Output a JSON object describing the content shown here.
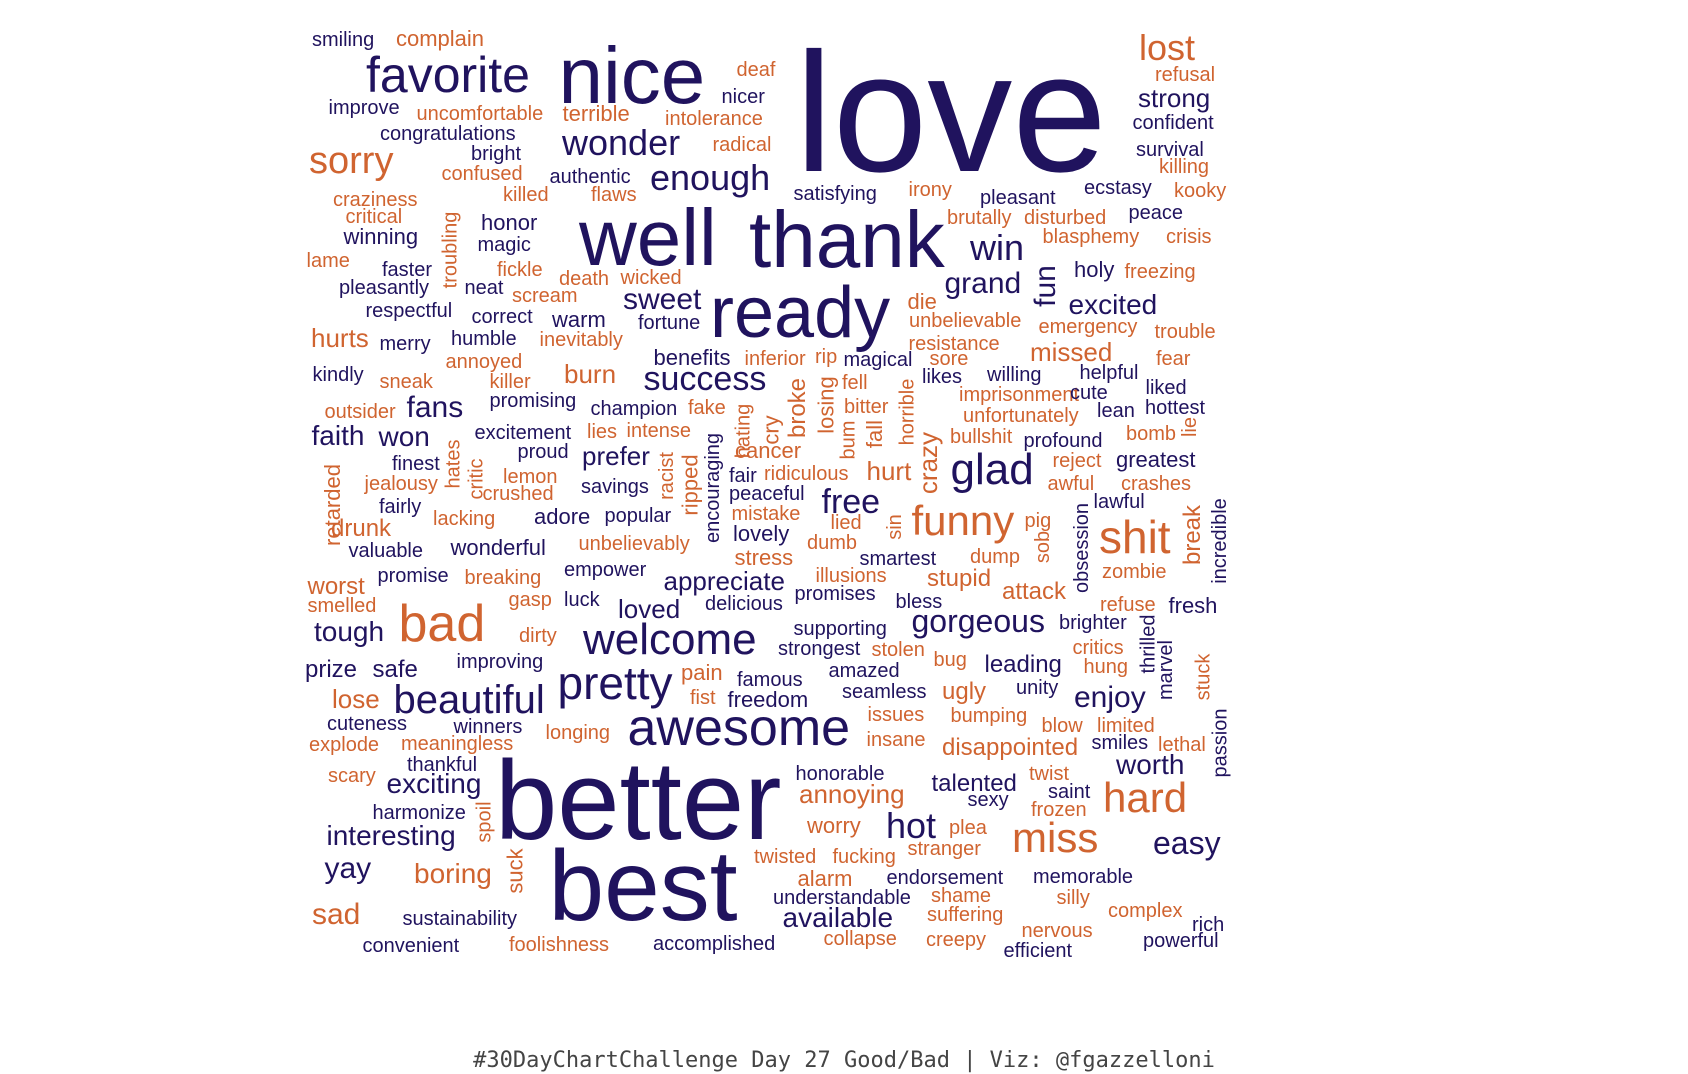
{
  "colors": {
    "good": "#20135e",
    "bad": "#d06430"
  },
  "caption": "#30DayChartChallenge Day 27 Good/Bad | Viz: @fgazzelloni",
  "words": [
    {
      "t": "love",
      "c": "good"
    },
    {
      "t": "nice",
      "c": "good"
    },
    {
      "t": "well",
      "c": "good"
    },
    {
      "t": "thank",
      "c": "good"
    },
    {
      "t": "ready",
      "c": "good"
    },
    {
      "t": "better",
      "c": "good"
    },
    {
      "t": "best",
      "c": "good"
    },
    {
      "t": "favorite",
      "c": "good"
    },
    {
      "t": "awesome",
      "c": "good"
    },
    {
      "t": "welcome",
      "c": "good"
    },
    {
      "t": "pretty",
      "c": "good"
    },
    {
      "t": "beautiful",
      "c": "good"
    },
    {
      "t": "bad",
      "c": "bad"
    },
    {
      "t": "shit",
      "c": "bad"
    },
    {
      "t": "miss",
      "c": "bad"
    },
    {
      "t": "hard",
      "c": "bad"
    },
    {
      "t": "funny",
      "c": "bad"
    },
    {
      "t": "glad",
      "c": "good"
    },
    {
      "t": "sorry",
      "c": "bad"
    },
    {
      "t": "lost",
      "c": "bad"
    },
    {
      "t": "wonder",
      "c": "good"
    },
    {
      "t": "enough",
      "c": "good"
    },
    {
      "t": "win",
      "c": "good"
    },
    {
      "t": "grand",
      "c": "good"
    },
    {
      "t": "fun",
      "c": "good"
    },
    {
      "t": "sweet",
      "c": "good"
    },
    {
      "t": "success",
      "c": "good"
    },
    {
      "t": "excited",
      "c": "good"
    },
    {
      "t": "gorgeous",
      "c": "good"
    },
    {
      "t": "free",
      "c": "good"
    },
    {
      "t": "hot",
      "c": "good"
    },
    {
      "t": "easy",
      "c": "good"
    },
    {
      "t": "worth",
      "c": "good"
    },
    {
      "t": "enjoy",
      "c": "good"
    },
    {
      "t": "interesting",
      "c": "good"
    },
    {
      "t": "exciting",
      "c": "good"
    },
    {
      "t": "yay",
      "c": "good"
    },
    {
      "t": "sad",
      "c": "bad"
    },
    {
      "t": "boring",
      "c": "bad"
    },
    {
      "t": "annoying",
      "c": "bad"
    },
    {
      "t": "available",
      "c": "good"
    },
    {
      "t": "strong",
      "c": "good"
    },
    {
      "t": "tough",
      "c": "good"
    },
    {
      "t": "fans",
      "c": "good"
    },
    {
      "t": "faith",
      "c": "good"
    },
    {
      "t": "won",
      "c": "good"
    },
    {
      "t": "prefer",
      "c": "good"
    },
    {
      "t": "appreciate",
      "c": "good"
    },
    {
      "t": "loved",
      "c": "good"
    },
    {
      "t": "talented",
      "c": "good"
    },
    {
      "t": "leading",
      "c": "good"
    },
    {
      "t": "missed",
      "c": "bad"
    },
    {
      "t": "burn",
      "c": "bad"
    },
    {
      "t": "hurts",
      "c": "bad"
    },
    {
      "t": "hurt",
      "c": "bad"
    },
    {
      "t": "crazy",
      "c": "bad"
    },
    {
      "t": "stupid",
      "c": "bad"
    },
    {
      "t": "attack",
      "c": "bad"
    },
    {
      "t": "ugly",
      "c": "bad"
    },
    {
      "t": "disappointed",
      "c": "bad"
    },
    {
      "t": "worry",
      "c": "bad"
    },
    {
      "t": "lose",
      "c": "bad"
    },
    {
      "t": "worst",
      "c": "bad"
    },
    {
      "t": "drunk",
      "c": "bad"
    },
    {
      "t": "prize",
      "c": "good"
    },
    {
      "t": "safe",
      "c": "good"
    },
    {
      "t": "wonderful",
      "c": "good"
    },
    {
      "t": "adore",
      "c": "good"
    },
    {
      "t": "lovely",
      "c": "good"
    },
    {
      "t": "greatest",
      "c": "good"
    },
    {
      "t": "fresh",
      "c": "good"
    },
    {
      "t": "confident",
      "c": "good"
    },
    {
      "t": "survival",
      "c": "good"
    },
    {
      "t": "smiling",
      "c": "good"
    },
    {
      "t": "complain",
      "c": "bad"
    },
    {
      "t": "deaf",
      "c": "bad"
    },
    {
      "t": "refusal",
      "c": "bad"
    },
    {
      "t": "improve",
      "c": "good"
    },
    {
      "t": "uncomfortable",
      "c": "bad"
    },
    {
      "t": "terrible",
      "c": "bad"
    },
    {
      "t": "nicer",
      "c": "good"
    },
    {
      "t": "intolerance",
      "c": "bad"
    },
    {
      "t": "congratulations",
      "c": "good"
    },
    {
      "t": "radical",
      "c": "bad"
    },
    {
      "t": "bright",
      "c": "good"
    },
    {
      "t": "killing",
      "c": "bad"
    },
    {
      "t": "confused",
      "c": "bad"
    },
    {
      "t": "authentic",
      "c": "good"
    },
    {
      "t": "satisfying",
      "c": "good"
    },
    {
      "t": "irony",
      "c": "bad"
    },
    {
      "t": "ecstasy",
      "c": "good"
    },
    {
      "t": "kooky",
      "c": "bad"
    },
    {
      "t": "craziness",
      "c": "bad"
    },
    {
      "t": "killed",
      "c": "bad"
    },
    {
      "t": "flaws",
      "c": "bad"
    },
    {
      "t": "pleasant",
      "c": "good"
    },
    {
      "t": "critical",
      "c": "bad"
    },
    {
      "t": "brutally",
      "c": "bad"
    },
    {
      "t": "disturbed",
      "c": "bad"
    },
    {
      "t": "peace",
      "c": "good"
    },
    {
      "t": "honor",
      "c": "good"
    },
    {
      "t": "winning",
      "c": "good"
    },
    {
      "t": "blasphemy",
      "c": "bad"
    },
    {
      "t": "crisis",
      "c": "bad"
    },
    {
      "t": "magic",
      "c": "good"
    },
    {
      "t": "troubling",
      "c": "bad"
    },
    {
      "t": "lame",
      "c": "bad"
    },
    {
      "t": "faster",
      "c": "good"
    },
    {
      "t": "fickle",
      "c": "bad"
    },
    {
      "t": "holy",
      "c": "good"
    },
    {
      "t": "freezing",
      "c": "bad"
    },
    {
      "t": "death",
      "c": "bad"
    },
    {
      "t": "wicked",
      "c": "bad"
    },
    {
      "t": "pleasantly",
      "c": "good"
    },
    {
      "t": "neat",
      "c": "good"
    },
    {
      "t": "scream",
      "c": "bad"
    },
    {
      "t": "die",
      "c": "bad"
    },
    {
      "t": "respectful",
      "c": "good"
    },
    {
      "t": "correct",
      "c": "good"
    },
    {
      "t": "warm",
      "c": "good"
    },
    {
      "t": "fortune",
      "c": "good"
    },
    {
      "t": "unbelievable",
      "c": "bad"
    },
    {
      "t": "emergency",
      "c": "bad"
    },
    {
      "t": "trouble",
      "c": "bad"
    },
    {
      "t": "humble",
      "c": "good"
    },
    {
      "t": "inevitably",
      "c": "bad"
    },
    {
      "t": "resistance",
      "c": "bad"
    },
    {
      "t": "merry",
      "c": "good"
    },
    {
      "t": "benefits",
      "c": "good"
    },
    {
      "t": "inferior",
      "c": "bad"
    },
    {
      "t": "rip",
      "c": "bad"
    },
    {
      "t": "magical",
      "c": "good"
    },
    {
      "t": "sore",
      "c": "bad"
    },
    {
      "t": "fear",
      "c": "bad"
    },
    {
      "t": "annoyed",
      "c": "bad"
    },
    {
      "t": "kindly",
      "c": "good"
    },
    {
      "t": "sneak",
      "c": "bad"
    },
    {
      "t": "killer",
      "c": "bad"
    },
    {
      "t": "fell",
      "c": "bad"
    },
    {
      "t": "likes",
      "c": "good"
    },
    {
      "t": "willing",
      "c": "good"
    },
    {
      "t": "helpful",
      "c": "good"
    },
    {
      "t": "liked",
      "c": "good"
    },
    {
      "t": "promising",
      "c": "good"
    },
    {
      "t": "broke",
      "c": "bad"
    },
    {
      "t": "imprisonment",
      "c": "bad"
    },
    {
      "t": "cute",
      "c": "good"
    },
    {
      "t": "outsider",
      "c": "bad"
    },
    {
      "t": "champion",
      "c": "good"
    },
    {
      "t": "fake",
      "c": "bad"
    },
    {
      "t": "losing",
      "c": "bad"
    },
    {
      "t": "bitter",
      "c": "bad"
    },
    {
      "t": "unfortunately",
      "c": "bad"
    },
    {
      "t": "lean",
      "c": "good"
    },
    {
      "t": "hottest",
      "c": "good"
    },
    {
      "t": "excitement",
      "c": "good"
    },
    {
      "t": "lies",
      "c": "bad"
    },
    {
      "t": "intense",
      "c": "bad"
    },
    {
      "t": "hating",
      "c": "bad"
    },
    {
      "t": "cry",
      "c": "bad"
    },
    {
      "t": "bum",
      "c": "bad"
    },
    {
      "t": "fall",
      "c": "bad"
    },
    {
      "t": "horrible",
      "c": "bad"
    },
    {
      "t": "bullshit",
      "c": "bad"
    },
    {
      "t": "profound",
      "c": "good"
    },
    {
      "t": "bomb",
      "c": "bad"
    },
    {
      "t": "lie",
      "c": "bad"
    },
    {
      "t": "proud",
      "c": "good"
    },
    {
      "t": "encouraging",
      "c": "good"
    },
    {
      "t": "cancer",
      "c": "bad"
    },
    {
      "t": "finest",
      "c": "good"
    },
    {
      "t": "hates",
      "c": "bad"
    },
    {
      "t": "critic",
      "c": "bad"
    },
    {
      "t": "lemon",
      "c": "bad"
    },
    {
      "t": "racist",
      "c": "bad"
    },
    {
      "t": "ripped",
      "c": "bad"
    },
    {
      "t": "fair",
      "c": "good"
    },
    {
      "t": "ridiculous",
      "c": "bad"
    },
    {
      "t": "reject",
      "c": "bad"
    },
    {
      "t": "jealousy",
      "c": "bad"
    },
    {
      "t": "crushed",
      "c": "bad"
    },
    {
      "t": "savings",
      "c": "good"
    },
    {
      "t": "peaceful",
      "c": "good"
    },
    {
      "t": "awful",
      "c": "bad"
    },
    {
      "t": "crashes",
      "c": "bad"
    },
    {
      "t": "retarded",
      "c": "bad"
    },
    {
      "t": "fairly",
      "c": "good"
    },
    {
      "t": "lawful",
      "c": "good"
    },
    {
      "t": "lacking",
      "c": "bad"
    },
    {
      "t": "popular",
      "c": "good"
    },
    {
      "t": "mistake",
      "c": "bad"
    },
    {
      "t": "lied",
      "c": "bad"
    },
    {
      "t": "sin",
      "c": "bad"
    },
    {
      "t": "pig",
      "c": "bad"
    },
    {
      "t": "obsession",
      "c": "good"
    },
    {
      "t": "break",
      "c": "bad"
    },
    {
      "t": "incredible",
      "c": "good"
    },
    {
      "t": "valuable",
      "c": "good"
    },
    {
      "t": "unbelievably",
      "c": "bad"
    },
    {
      "t": "dumb",
      "c": "bad"
    },
    {
      "t": "stress",
      "c": "bad"
    },
    {
      "t": "smartest",
      "c": "good"
    },
    {
      "t": "dump",
      "c": "bad"
    },
    {
      "t": "sob",
      "c": "bad"
    },
    {
      "t": "promise",
      "c": "good"
    },
    {
      "t": "breaking",
      "c": "bad"
    },
    {
      "t": "empower",
      "c": "good"
    },
    {
      "t": "illusions",
      "c": "bad"
    },
    {
      "t": "zombie",
      "c": "bad"
    },
    {
      "t": "smelled",
      "c": "bad"
    },
    {
      "t": "gasp",
      "c": "bad"
    },
    {
      "t": "luck",
      "c": "good"
    },
    {
      "t": "delicious",
      "c": "good"
    },
    {
      "t": "promises",
      "c": "good"
    },
    {
      "t": "bless",
      "c": "good"
    },
    {
      "t": "refuse",
      "c": "bad"
    },
    {
      "t": "dirty",
      "c": "bad"
    },
    {
      "t": "supporting",
      "c": "good"
    },
    {
      "t": "brighter",
      "c": "good"
    },
    {
      "t": "thrilled",
      "c": "good"
    },
    {
      "t": "strongest",
      "c": "good"
    },
    {
      "t": "stolen",
      "c": "bad"
    },
    {
      "t": "bug",
      "c": "bad"
    },
    {
      "t": "critics",
      "c": "bad"
    },
    {
      "t": "improving",
      "c": "good"
    },
    {
      "t": "amazed",
      "c": "good"
    },
    {
      "t": "hung",
      "c": "bad"
    },
    {
      "t": "marvel",
      "c": "good"
    },
    {
      "t": "famous",
      "c": "good"
    },
    {
      "t": "pain",
      "c": "bad"
    },
    {
      "t": "unity",
      "c": "good"
    },
    {
      "t": "stuck",
      "c": "bad"
    },
    {
      "t": "fist",
      "c": "bad"
    },
    {
      "t": "freedom",
      "c": "good"
    },
    {
      "t": "seamless",
      "c": "good"
    },
    {
      "t": "cuteness",
      "c": "good"
    },
    {
      "t": "winners",
      "c": "good"
    },
    {
      "t": "issues",
      "c": "bad"
    },
    {
      "t": "bumping",
      "c": "bad"
    },
    {
      "t": "blow",
      "c": "bad"
    },
    {
      "t": "limited",
      "c": "bad"
    },
    {
      "t": "passion",
      "c": "good"
    },
    {
      "t": "explode",
      "c": "bad"
    },
    {
      "t": "meaningless",
      "c": "bad"
    },
    {
      "t": "longing",
      "c": "bad"
    },
    {
      "t": "insane",
      "c": "bad"
    },
    {
      "t": "smiles",
      "c": "good"
    },
    {
      "t": "lethal",
      "c": "bad"
    },
    {
      "t": "thankful",
      "c": "good"
    },
    {
      "t": "honorable",
      "c": "good"
    },
    {
      "t": "twist",
      "c": "bad"
    },
    {
      "t": "scary",
      "c": "bad"
    },
    {
      "t": "saint",
      "c": "good"
    },
    {
      "t": "sexy",
      "c": "good"
    },
    {
      "t": "harmonize",
      "c": "good"
    },
    {
      "t": "spoil",
      "c": "bad"
    },
    {
      "t": "frozen",
      "c": "bad"
    },
    {
      "t": "plea",
      "c": "bad"
    },
    {
      "t": "suck",
      "c": "bad"
    },
    {
      "t": "twisted",
      "c": "bad"
    },
    {
      "t": "fucking",
      "c": "bad"
    },
    {
      "t": "stranger",
      "c": "bad"
    },
    {
      "t": "alarm",
      "c": "bad"
    },
    {
      "t": "endorsement",
      "c": "good"
    },
    {
      "t": "memorable",
      "c": "good"
    },
    {
      "t": "understandable",
      "c": "good"
    },
    {
      "t": "shame",
      "c": "bad"
    },
    {
      "t": "silly",
      "c": "bad"
    },
    {
      "t": "sustainability",
      "c": "good"
    },
    {
      "t": "suffering",
      "c": "bad"
    },
    {
      "t": "complex",
      "c": "bad"
    },
    {
      "t": "rich",
      "c": "good"
    },
    {
      "t": "nervous",
      "c": "bad"
    },
    {
      "t": "convenient",
      "c": "good"
    },
    {
      "t": "foolishness",
      "c": "bad"
    },
    {
      "t": "accomplished",
      "c": "good"
    },
    {
      "t": "collapse",
      "c": "bad"
    },
    {
      "t": "creepy",
      "c": "bad"
    },
    {
      "t": "efficient",
      "c": "good"
    },
    {
      "t": "powerful",
      "c": "good"
    }
  ]
}
